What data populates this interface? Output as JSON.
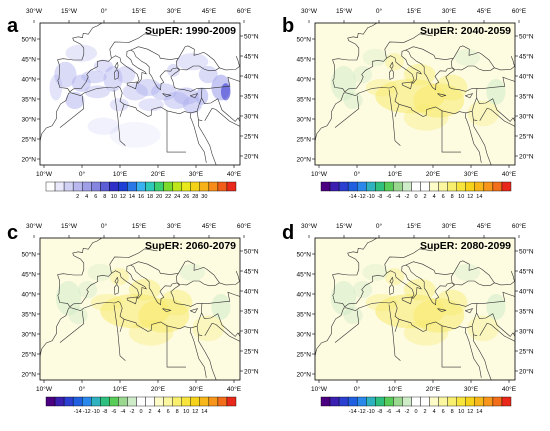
{
  "panels": [
    {
      "letter": "a",
      "title": "SupER: 1990-2009",
      "top_lon_labels": [
        "30°W",
        "15°W",
        "0°",
        "15°E",
        "30°E",
        "45°E",
        "60°E"
      ],
      "right_lat_labels": [
        "50°N",
        "45°N",
        "40°N",
        "35°N",
        "30°N",
        "25°N",
        "20°N"
      ],
      "left_lat_labels": [
        "50°N",
        "45°N",
        "40°N",
        "35°N",
        "30°N",
        "25°N",
        "20°N"
      ],
      "bottom_lon_labels": [
        "10°W",
        "0°",
        "10°E",
        "20°E",
        "30°E",
        "40°E"
      ],
      "colorbar": {
        "labels": [
          "2",
          "4",
          "6",
          "8",
          "10",
          "12",
          "14",
          "16",
          "18",
          "20",
          "22",
          "24",
          "26",
          "28",
          "30"
        ],
        "colors": [
          "#ffffff",
          "#e9e9fb",
          "#d0d0f4",
          "#b8b8ee",
          "#9f9fe8",
          "#8686e0",
          "#5d5dd6",
          "#3030c8",
          "#1d3fd6",
          "#2a78e8",
          "#3ab1f0",
          "#2fc9b9",
          "#3ccf6f",
          "#7ddb2c",
          "#bfe61a",
          "#e8e81a",
          "#f5d21a",
          "#f7b21a",
          "#f78c1a",
          "#f25c1a",
          "#e8281a"
        ]
      }
    },
    {
      "letter": "b",
      "title": "SupER: 2040-2059",
      "top_lon_labels": [
        "30°W",
        "15°W",
        "0°",
        "15°E",
        "30°E",
        "45°E",
        "60°E"
      ],
      "right_lat_labels": [
        "50°N",
        "45°N",
        "40°N",
        "35°N",
        "30°N",
        "25°N",
        "20°N"
      ],
      "left_lat_labels": [
        "50°N",
        "45°N",
        "40°N",
        "35°N",
        "30°N",
        "25°N",
        "20°N"
      ],
      "bottom_lon_labels": [
        "10°W",
        "0°",
        "10°E",
        "20°E",
        "30°E",
        "40°E"
      ],
      "colorbar": {
        "labels": [
          "-14",
          "-12",
          "-10",
          "-8",
          "-6",
          "-4",
          "-2",
          "0",
          "2",
          "4",
          "6",
          "8",
          "10",
          "12",
          "14"
        ],
        "colors": [
          "#4b0082",
          "#3a1fb0",
          "#2b3fd0",
          "#2060e0",
          "#2a88ea",
          "#2fb1c0",
          "#2fc080",
          "#58cc58",
          "#9ad890",
          "#cfecc8",
          "#ffffff",
          "#ffffff",
          "#fdfbc8",
          "#fbf6a0",
          "#f9ef6e",
          "#f7e43c",
          "#f7d21a",
          "#f7b61a",
          "#f7961a",
          "#f26e1a",
          "#e8281a"
        ]
      }
    },
    {
      "letter": "c",
      "title": "SupER: 2060-2079",
      "top_lon_labels": [
        "30°W",
        "15°W",
        "0°",
        "15°E",
        "30°E",
        "45°E",
        "60°E"
      ],
      "right_lat_labels": [
        "50°N",
        "45°N",
        "40°N",
        "35°N",
        "30°N",
        "25°N",
        "20°N"
      ],
      "left_lat_labels": [
        "50°N",
        "45°N",
        "40°N",
        "35°N",
        "30°N",
        "25°N",
        "20°N"
      ],
      "bottom_lon_labels": [
        "10°W",
        "0°",
        "10°E",
        "20°E",
        "30°E",
        "40°E"
      ],
      "colorbar": {
        "labels": [
          "-14",
          "-12",
          "-10",
          "-8",
          "-6",
          "-4",
          "-2",
          "0",
          "2",
          "4",
          "6",
          "8",
          "10",
          "12",
          "14"
        ],
        "colors": [
          "#4b0082",
          "#3a1fb0",
          "#2b3fd0",
          "#2060e0",
          "#2a88ea",
          "#2fb1c0",
          "#2fc080",
          "#58cc58",
          "#9ad890",
          "#cfecc8",
          "#ffffff",
          "#ffffff",
          "#fdfbc8",
          "#fbf6a0",
          "#f9ef6e",
          "#f7e43c",
          "#f7d21a",
          "#f7b61a",
          "#f7961a",
          "#f26e1a",
          "#e8281a"
        ]
      }
    },
    {
      "letter": "d",
      "title": "SupER: 2080-2099",
      "top_lon_labels": [
        "30°W",
        "15°W",
        "0°",
        "15°E",
        "30°E",
        "45°E",
        "60°E"
      ],
      "right_lat_labels": [
        "50°N",
        "45°N",
        "40°N",
        "35°N",
        "30°N",
        "25°N",
        "20°N"
      ],
      "left_lat_labels": [
        "50°N",
        "45°N",
        "40°N",
        "35°N",
        "30°N",
        "25°N",
        "20°N"
      ],
      "bottom_lon_labels": [
        "10°W",
        "0°",
        "10°E",
        "20°E",
        "30°E",
        "40°E"
      ],
      "colorbar": {
        "labels": [
          "-14",
          "-12",
          "-10",
          "-8",
          "-6",
          "-4",
          "-2",
          "0",
          "2",
          "4",
          "6",
          "8",
          "10",
          "12",
          "14"
        ],
        "colors": [
          "#4b0082",
          "#3a1fb0",
          "#2b3fd0",
          "#2060e0",
          "#2a88ea",
          "#2fb1c0",
          "#2fc080",
          "#58cc58",
          "#9ad890",
          "#cfecc8",
          "#ffffff",
          "#ffffff",
          "#fdfbc8",
          "#fbf6a0",
          "#f9ef6e",
          "#f7e43c",
          "#f7d21a",
          "#f7b61a",
          "#f7961a",
          "#f26e1a",
          "#e8281a"
        ]
      }
    }
  ],
  "colors": {
    "baseline_map_bg": "#ffffff",
    "baseline_shading": "#aeb0ee",
    "baseline_shading_strong": "#3a3ad0",
    "future_map_bg": "#fdfbe0",
    "future_positive": "#f7ea6e",
    "future_negative": "#cfecc8",
    "coastline": "#333333"
  }
}
